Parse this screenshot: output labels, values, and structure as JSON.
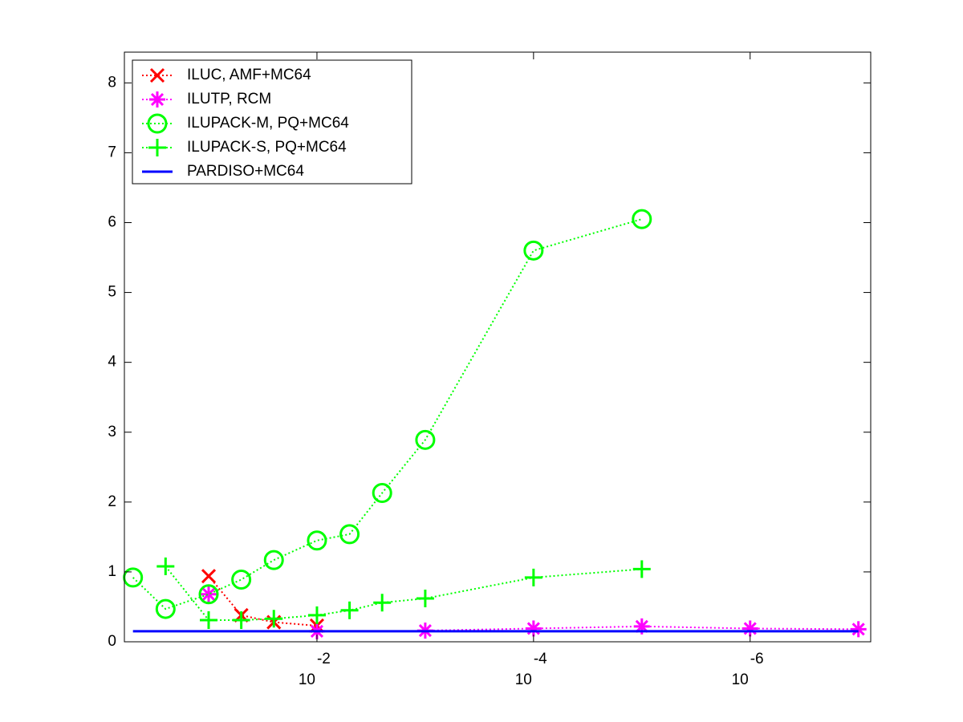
{
  "chart_data": {
    "type": "line",
    "x": [
      0.5,
      0.25,
      0.1,
      0.05,
      0.025,
      0.01,
      0.005,
      0.0025,
      0.001,
      0.0001,
      1e-05,
      1e-06,
      1e-07
    ],
    "xscale": "log",
    "xlim": [
      0.6,
      7.7e-08
    ],
    "xticks": [
      {
        "value": 0.01,
        "label": "10",
        "exponent": "-2"
      },
      {
        "value": 0.0001,
        "label": "10",
        "exponent": "-4"
      },
      {
        "value": 1e-06,
        "label": "10",
        "exponent": "-6"
      }
    ],
    "ylim": [
      0,
      8.44
    ],
    "yticks": [
      0,
      1,
      2,
      3,
      4,
      5,
      6,
      7,
      8
    ],
    "legend": "upper left",
    "series": [
      {
        "name": "ILUC, AMF+MC64",
        "color": "#ff0000",
        "marker": "x",
        "style": "dotted",
        "values": [
          null,
          null,
          0.94,
          0.38,
          0.28,
          0.23,
          null,
          null,
          null,
          null,
          null,
          null,
          null
        ]
      },
      {
        "name": "ILUTP, RCM",
        "color": "#ff00ff",
        "marker": "star",
        "style": "dotted",
        "values": [
          null,
          null,
          0.68,
          null,
          null,
          0.15,
          null,
          null,
          0.16,
          0.19,
          0.22,
          0.19,
          0.18
        ]
      },
      {
        "name": "ILUPACK-M, PQ+MC64",
        "color": "#00ff00",
        "marker": "circle",
        "style": "dotted",
        "values": [
          0.92,
          0.47,
          0.68,
          0.89,
          1.17,
          1.45,
          1.54,
          2.13,
          2.89,
          5.6,
          6.05,
          null,
          null
        ]
      },
      {
        "name": "ILUPACK-S, PQ+MC64",
        "color": "#00ff00",
        "marker": "plus",
        "style": "dotted",
        "values": [
          null,
          1.08,
          0.31,
          0.31,
          0.33,
          0.38,
          0.45,
          0.56,
          0.62,
          0.92,
          1.04,
          null,
          null
        ]
      },
      {
        "name": "PARDISO+MC64",
        "color": "#0000ff",
        "marker": "none",
        "style": "solid",
        "values": [
          0.15,
          0.15,
          0.15,
          0.15,
          0.15,
          0.15,
          0.15,
          0.15,
          0.15,
          0.15,
          0.15,
          0.15,
          0.15
        ]
      }
    ]
  }
}
